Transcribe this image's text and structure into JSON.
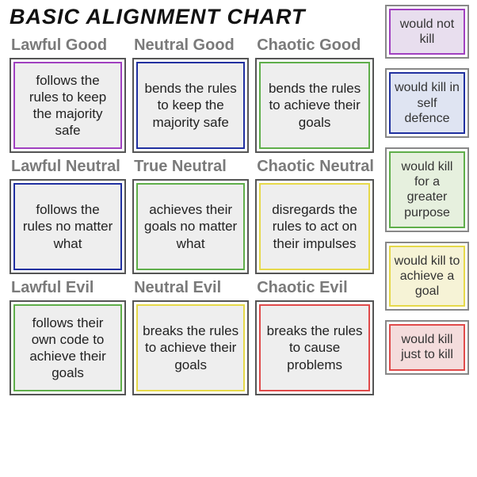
{
  "title": "BASIC ALIGNMENT CHART",
  "title_fontsize": 27,
  "title_color": "#111111",
  "grid": {
    "cell_bg": "#eeeeee",
    "outer_border_color": "#555555",
    "label_color": "#7a7a7a",
    "label_fontsize": 20,
    "text_fontsize": 17,
    "cells": [
      {
        "label": "Lawful Good",
        "text": "follows the rules to keep the majority safe",
        "border": "#a040c0"
      },
      {
        "label": "Neutral Good",
        "text": "bends the rules to keep the majority safe",
        "border": "#2030a0"
      },
      {
        "label": "Chaotic Good",
        "text": "bends the rules to achieve their goals",
        "border": "#5fae4a"
      },
      {
        "label": "Lawful Neutral",
        "text": "follows the rules no matter what",
        "border": "#2030a0"
      },
      {
        "label": "True Neutral",
        "text": "achieves their goals no matter what",
        "border": "#5fae4a"
      },
      {
        "label": "Chaotic Neutral",
        "text": "disregards the rules to act on their impulses",
        "border": "#e6d94a"
      },
      {
        "label": "Lawful Evil",
        "text": "follows their own code to achieve their goals",
        "border": "#5fae4a"
      },
      {
        "label": "Neutral Evil",
        "text": "breaks the rules to achieve their goals",
        "border": "#e6d94a"
      },
      {
        "label": "Chaotic Evil",
        "text": "breaks the rules to cause problems",
        "border": "#e04a4a"
      }
    ]
  },
  "legend": {
    "text_fontsize": 16,
    "items": [
      {
        "text": "would not kill",
        "border": "#a040c0",
        "bg": "#e8deee"
      },
      {
        "text": "would kill in self defence",
        "border": "#2030a0",
        "bg": "#dfe4f2"
      },
      {
        "text": "would kill for a greater purpose",
        "border": "#5fae4a",
        "bg": "#e6f0de"
      },
      {
        "text": "would kill to achieve a goal",
        "border": "#e6d94a",
        "bg": "#f6f3d6"
      },
      {
        "text": "would kill just to kill",
        "border": "#e04a4a",
        "bg": "#f4dcdc"
      }
    ]
  }
}
